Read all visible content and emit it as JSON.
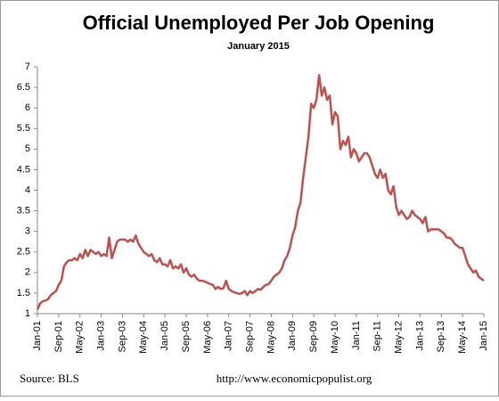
{
  "chart_data": {
    "type": "line",
    "title": "Official Unemployed Per Job Opening",
    "subtitle": "January 2015",
    "source": "Source:  BLS",
    "url": "http://www.economicpopulist.org",
    "categories": [
      "Jan-01",
      null,
      null,
      null,
      null,
      null,
      null,
      null,
      "Sep-01",
      null,
      null,
      null,
      null,
      null,
      null,
      null,
      "May-02",
      null,
      null,
      null,
      null,
      null,
      null,
      null,
      "Jan-03",
      null,
      null,
      null,
      null,
      null,
      null,
      null,
      "Sep-03",
      null,
      null,
      null,
      null,
      null,
      null,
      null,
      "May-04",
      null,
      null,
      null,
      null,
      null,
      null,
      null,
      "Jan-05",
      null,
      null,
      null,
      null,
      null,
      null,
      null,
      "Sep-05",
      null,
      null,
      null,
      null,
      null,
      null,
      null,
      "May-06",
      null,
      null,
      null,
      null,
      null,
      null,
      null,
      "Jan-07",
      null,
      null,
      null,
      null,
      null,
      null,
      null,
      "Sep-07",
      null,
      null,
      null,
      null,
      null,
      null,
      null,
      "May-08",
      null,
      null,
      null,
      null,
      null,
      null,
      null,
      "Jan-09",
      null,
      null,
      null,
      null,
      null,
      null,
      null,
      "Sep-09",
      null,
      null,
      null,
      null,
      null,
      null,
      null,
      "May-10",
      null,
      null,
      null,
      null,
      null,
      null,
      null,
      "Jan-11",
      null,
      null,
      null,
      null,
      null,
      null,
      null,
      "Sep-11",
      null,
      null,
      null,
      null,
      null,
      null,
      null,
      "May-12",
      null,
      null,
      null,
      null,
      null,
      null,
      null,
      "Jan-13",
      null,
      null,
      null,
      null,
      null,
      null,
      null,
      "Sep-13",
      null,
      null,
      null,
      null,
      null,
      null,
      null,
      "May-14",
      null,
      null,
      null,
      null,
      null,
      null,
      null,
      "Jan-15"
    ],
    "values": [
      1.1,
      1.25,
      1.3,
      1.32,
      1.35,
      1.45,
      1.5,
      1.55,
      1.7,
      1.8,
      2.15,
      2.25,
      2.3,
      2.3,
      2.35,
      2.3,
      2.45,
      2.35,
      2.55,
      2.4,
      2.55,
      2.5,
      2.45,
      2.5,
      2.4,
      2.45,
      2.4,
      2.85,
      2.35,
      2.55,
      2.75,
      2.8,
      2.8,
      2.8,
      2.75,
      2.8,
      2.75,
      2.9,
      2.7,
      2.6,
      2.5,
      2.45,
      2.4,
      2.45,
      2.3,
      2.25,
      2.35,
      2.2,
      2.2,
      2.15,
      2.3,
      2.1,
      2.15,
      2.1,
      2.2,
      2.0,
      2.1,
      1.95,
      1.9,
      1.95,
      1.85,
      1.8,
      1.8,
      1.78,
      1.75,
      1.72,
      1.7,
      1.6,
      1.65,
      1.6,
      1.62,
      1.8,
      1.6,
      1.55,
      1.52,
      1.5,
      1.48,
      1.5,
      1.55,
      1.45,
      1.55,
      1.5,
      1.55,
      1.6,
      1.58,
      1.65,
      1.7,
      1.72,
      1.8,
      1.9,
      1.95,
      2.0,
      2.1,
      2.3,
      2.4,
      2.6,
      2.9,
      3.1,
      3.5,
      3.7,
      4.3,
      4.8,
      5.3,
      6.1,
      6.0,
      6.2,
      6.8,
      6.3,
      6.5,
      6.2,
      6.3,
      5.6,
      5.9,
      5.8,
      5.0,
      5.2,
      5.1,
      5.3,
      4.8,
      5.0,
      4.9,
      4.7,
      4.8,
      4.9,
      4.9,
      4.8,
      4.6,
      4.4,
      4.3,
      4.5,
      4.3,
      4.4,
      4.0,
      3.9,
      4.1,
      3.6,
      3.4,
      3.5,
      3.4,
      3.3,
      3.35,
      3.5,
      3.4,
      3.35,
      3.3,
      3.2,
      3.35,
      3.0,
      3.05,
      3.05,
      3.05,
      3.05,
      3.0,
      2.95,
      2.85,
      2.85,
      2.8,
      2.7,
      2.65,
      2.6,
      2.6,
      2.4,
      2.2,
      2.1,
      2.0,
      2.05,
      1.9,
      1.85,
      1.8
    ],
    "color": "#c0504d",
    "ylim": [
      1,
      7
    ],
    "yticks": [
      1,
      1.5,
      2,
      2.5,
      3,
      3.5,
      4,
      4.5,
      5,
      5.5,
      6,
      6.5,
      7
    ],
    "grid": false
  }
}
